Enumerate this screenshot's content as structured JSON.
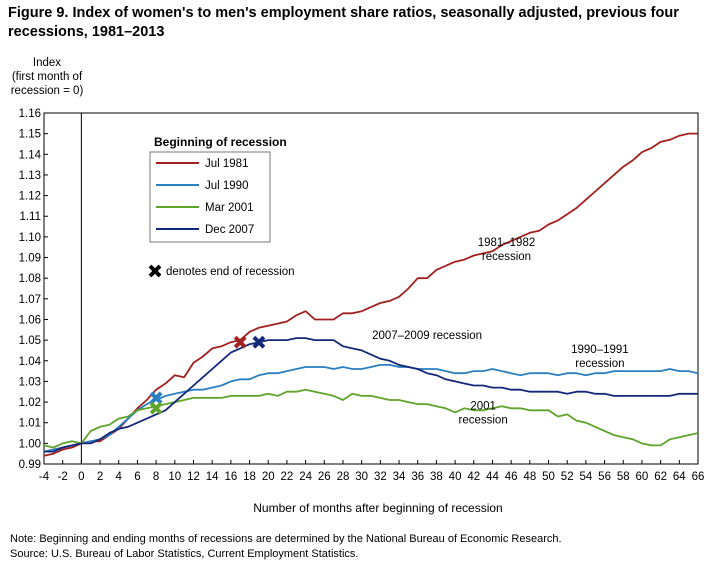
{
  "figure_title": "Figure 9. Index of women's to men's employment share ratios, seasonally adjusted, previous four recessions, 1981–2013",
  "note": "Note: Beginning and ending months of recessions are determined by the National Bureau of Economic Research.",
  "source": "Source: U.S. Bureau of Labor Statistics, Current Employment Statistics.",
  "chart_data": {
    "type": "line",
    "title": "Figure 9. Index of women's to men's employment share ratios, seasonally adjusted, previous four recessions, 1981–2013",
    "ylabel_lines": [
      "Index",
      "(first month of",
      "recession = 0)"
    ],
    "xlabel": "Number of months after beginning  of recession",
    "xlim": [
      -4,
      66
    ],
    "ylim": [
      0.99,
      1.16
    ],
    "x_ticks": [
      -4,
      -2,
      0,
      2,
      4,
      6,
      8,
      10,
      12,
      14,
      16,
      18,
      20,
      22,
      24,
      26,
      28,
      30,
      32,
      34,
      36,
      38,
      40,
      42,
      44,
      46,
      48,
      50,
      52,
      54,
      56,
      58,
      60,
      62,
      64,
      66
    ],
    "x_tick_labels": [
      "-4",
      "-2",
      "0",
      "2",
      "4",
      "6",
      "8",
      "10",
      "12",
      "14",
      "16",
      "18",
      "20",
      "22",
      "24",
      "26",
      "28",
      "30",
      "32",
      "34",
      "36",
      "38",
      "40",
      "42",
      "44",
      "46",
      "48",
      "50",
      "52",
      "54",
      "56",
      "58",
      "60",
      "62",
      "64",
      "66"
    ],
    "y_ticks": [
      0.99,
      1.0,
      1.01,
      1.02,
      1.03,
      1.04,
      1.05,
      1.06,
      1.07,
      1.08,
      1.09,
      1.1,
      1.11,
      1.12,
      1.13,
      1.14,
      1.15,
      1.16
    ],
    "y_tick_labels": [
      "0.99",
      "1.00",
      "1.01",
      "1.02",
      "1.03",
      "1.04",
      "1.05",
      "1.06",
      "1.07",
      "1.08",
      "1.09",
      "1.10",
      "1.11",
      "1.12",
      "1.13",
      "1.14",
      "1.15",
      "1.16"
    ],
    "grid": false,
    "legend": {
      "title": "Beginning of recession",
      "placement": "top-left",
      "marker_note": "denotes end of recession"
    },
    "annotations": [
      {
        "lines": [
          "1981–1982",
          "recession"
        ],
        "x": 45.5,
        "y": 1.0957
      },
      {
        "lines": [
          "2007–2009 recession"
        ],
        "x": 37,
        "y": 1.0505
      },
      {
        "lines": [
          "1990–1991",
          "recession"
        ],
        "x": 55.5,
        "y": 1.0438
      },
      {
        "lines": [
          "2001",
          "recession"
        ],
        "x": 43,
        "y": 1.0165
      }
    ],
    "series": [
      {
        "name": "Jul 1981",
        "color": "#a11f1f",
        "x_start": -4,
        "values": [
          0.994,
          0.995,
          0.997,
          0.998,
          1.0,
          1.001,
          1.001,
          1.004,
          1.007,
          1.012,
          1.017,
          1.021,
          1.026,
          1.029,
          1.033,
          1.032,
          1.039,
          1.042,
          1.046,
          1.047,
          1.049,
          1.05,
          1.054,
          1.056,
          1.057,
          1.058,
          1.059,
          1.062,
          1.064,
          1.06,
          1.06,
          1.06,
          1.063,
          1.063,
          1.064,
          1.066,
          1.068,
          1.069,
          1.071,
          1.075,
          1.08,
          1.08,
          1.084,
          1.086,
          1.088,
          1.089,
          1.091,
          1.092,
          1.093,
          1.096,
          1.098,
          1.1,
          1.102,
          1.103,
          1.106,
          1.108,
          1.111,
          1.114,
          1.118,
          1.122,
          1.126,
          1.13,
          1.134,
          1.137,
          1.141,
          1.143,
          1.146,
          1.147,
          1.149,
          1.15,
          1.15
        ],
        "end_marker": {
          "x": 17,
          "y": 1.049
        }
      },
      {
        "name": "Jul 1990",
        "color": "#2a7fc1",
        "x_start": -4,
        "values": [
          0.996,
          0.997,
          0.998,
          0.999,
          1.0,
          1.001,
          1.002,
          1.004,
          1.008,
          1.012,
          1.016,
          1.019,
          1.021,
          1.023,
          1.024,
          1.025,
          1.026,
          1.026,
          1.027,
          1.028,
          1.03,
          1.031,
          1.031,
          1.033,
          1.034,
          1.034,
          1.035,
          1.036,
          1.037,
          1.037,
          1.037,
          1.036,
          1.037,
          1.036,
          1.036,
          1.037,
          1.038,
          1.038,
          1.037,
          1.037,
          1.036,
          1.036,
          1.036,
          1.035,
          1.034,
          1.034,
          1.035,
          1.035,
          1.036,
          1.035,
          1.034,
          1.033,
          1.034,
          1.034,
          1.034,
          1.033,
          1.034,
          1.034,
          1.033,
          1.034,
          1.034,
          1.035,
          1.035,
          1.035,
          1.035,
          1.035,
          1.035,
          1.036,
          1.035,
          1.035,
          1.034
        ],
        "end_marker": {
          "x": 8,
          "y": 1.022
        }
      },
      {
        "name": "Mar 2001",
        "color": "#5ea32a",
        "x_start": -4,
        "values": [
          0.999,
          0.998,
          1.0,
          1.001,
          1.0,
          1.006,
          1.008,
          1.009,
          1.012,
          1.013,
          1.016,
          1.017,
          1.018,
          1.019,
          1.02,
          1.021,
          1.022,
          1.022,
          1.022,
          1.022,
          1.023,
          1.023,
          1.023,
          1.023,
          1.024,
          1.023,
          1.025,
          1.025,
          1.026,
          1.025,
          1.024,
          1.023,
          1.021,
          1.024,
          1.023,
          1.023,
          1.022,
          1.021,
          1.021,
          1.02,
          1.019,
          1.019,
          1.018,
          1.017,
          1.015,
          1.017,
          1.016,
          1.016,
          1.017,
          1.018,
          1.017,
          1.017,
          1.016,
          1.016,
          1.016,
          1.013,
          1.014,
          1.011,
          1.01,
          1.008,
          1.006,
          1.004,
          1.003,
          1.002,
          1.0,
          0.999,
          0.999,
          1.002,
          1.003,
          1.004,
          1.005
        ],
        "end_marker": {
          "x": 8,
          "y": 1.017
        }
      },
      {
        "name": "Dec 2007",
        "color": "#14287a",
        "x_start": -4,
        "values": [
          0.996,
          0.996,
          0.998,
          0.999,
          1.0,
          1.0,
          1.002,
          1.005,
          1.007,
          1.008,
          1.01,
          1.012,
          1.014,
          1.016,
          1.02,
          1.024,
          1.028,
          1.032,
          1.036,
          1.04,
          1.044,
          1.046,
          1.048,
          1.049,
          1.05,
          1.05,
          1.05,
          1.051,
          1.051,
          1.05,
          1.05,
          1.05,
          1.047,
          1.046,
          1.045,
          1.043,
          1.041,
          1.04,
          1.038,
          1.037,
          1.036,
          1.034,
          1.033,
          1.031,
          1.03,
          1.029,
          1.028,
          1.028,
          1.027,
          1.027,
          1.026,
          1.026,
          1.025,
          1.025,
          1.025,
          1.025,
          1.024,
          1.025,
          1.025,
          1.024,
          1.024,
          1.023,
          1.023,
          1.023,
          1.023,
          1.023,
          1.023,
          1.023,
          1.024,
          1.024,
          1.024
        ],
        "end_marker": {
          "x": 19,
          "y": 1.049
        }
      }
    ]
  }
}
